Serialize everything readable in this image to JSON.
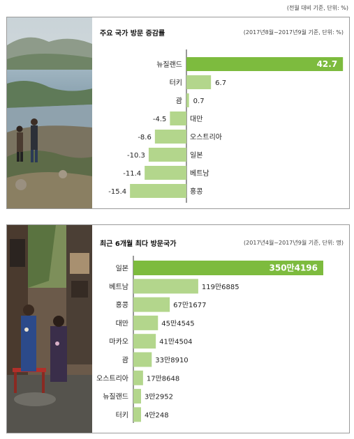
{
  "page_note": "(전월 대비 기준, 단위: %)",
  "chart_data": [
    {
      "type": "bar",
      "orientation": "horizontal",
      "title": "주요 국가 방문 증감률",
      "note": "(2017년8월~2017년9월 기준, 단위: %)",
      "categories": [
        "뉴질랜드",
        "터키",
        "괌",
        "대만",
        "오스트리아",
        "일본",
        "베트남",
        "홍콩"
      ],
      "values": [
        42.7,
        6.7,
        0.7,
        -4.5,
        -8.6,
        -10.3,
        -11.4,
        -15.4
      ],
      "value_labels": [
        "42.7",
        "6.7",
        "0.7",
        "-4.5",
        "-8.6",
        "-10.3",
        "-11.4",
        "-15.4"
      ],
      "xlim": [
        -18,
        48
      ],
      "colors": {
        "highlight": "#7dbb3e",
        "bar": "#b3d68c",
        "axis": "#333333"
      },
      "grid": false
    },
    {
      "type": "bar",
      "orientation": "horizontal",
      "title": "최근 6개월 최다 방문국가",
      "note": "(2017년4월~2017년9월 기준, 단위: 명)",
      "categories": [
        "일본",
        "베트남",
        "홍콩",
        "대만",
        "마카오",
        "괌",
        "오스트리아",
        "뉴질랜드",
        "터키"
      ],
      "values": [
        3504196,
        1196885,
        671677,
        454545,
        414504,
        338910,
        178648,
        32952,
        40248
      ],
      "value_labels": [
        "350만4196",
        "119만6885",
        "67만1677",
        "45만4545",
        "41만4504",
        "33만8910",
        "17만8648",
        "3만2952",
        "4만248"
      ],
      "xlim": [
        0,
        3700000
      ],
      "colors": {
        "highlight": "#7dbb3e",
        "bar": "#b3d68c",
        "axis": "#333333"
      },
      "grid": false
    }
  ]
}
